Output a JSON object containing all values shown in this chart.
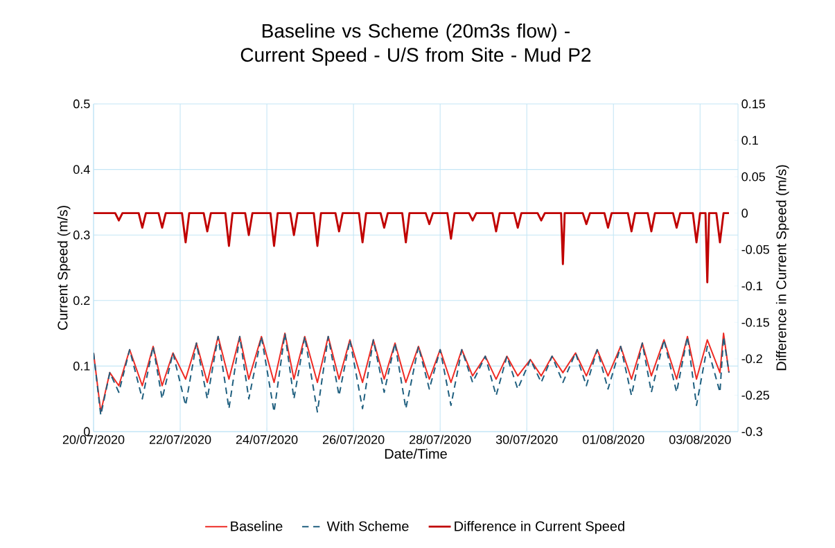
{
  "chart_data": {
    "type": "line",
    "title": "Baseline vs Scheme (20m3s flow) - Current Speed - U/S from Site - Mud P2",
    "xlabel": "Date/Time",
    "ylabel": "Current Speed (m/s)",
    "y2label": "Difference in Current Speed (m/s)",
    "xlim": [
      "2020-07-20",
      "2020-08-03T21:00"
    ],
    "xticks": [
      {
        "value": "2020-07-20",
        "label": "20/07/2020"
      },
      {
        "value": "2020-07-22",
        "label": "22/07/2020"
      },
      {
        "value": "2020-07-24",
        "label": "24/07/2020"
      },
      {
        "value": "2020-07-26",
        "label": "26/07/2020"
      },
      {
        "value": "2020-07-28",
        "label": "28/07/2020"
      },
      {
        "value": "2020-07-30",
        "label": "30/07/2020"
      },
      {
        "value": "2020-08-01",
        "label": "01/08/2020"
      },
      {
        "value": "2020-08-03",
        "label": "03/08/2020"
      }
    ],
    "ylim": [
      0,
      0.5
    ],
    "yticks": [
      0,
      0.1,
      0.2,
      0.3,
      0.4,
      0.5
    ],
    "y2lim": [
      -0.3,
      0.15
    ],
    "y2ticks": [
      -0.3,
      -0.25,
      -0.2,
      -0.15,
      -0.1,
      -0.05,
      0,
      0.05,
      0.1,
      0.15
    ],
    "grid": true,
    "legend": "bottom",
    "marker": "none",
    "series": [
      {
        "name": "Baseline",
        "color": "#ee2b24",
        "line_style": "solid",
        "x": [
          "2020-07-20T00:00",
          "2020-07-20T04:00",
          "2020-07-20T09:00",
          "2020-07-20T14:00",
          "2020-07-20T20:00",
          "2020-07-21T03:00",
          "2020-07-21T09:00",
          "2020-07-21T14:00",
          "2020-07-21T20:00",
          "2020-07-22T03:00",
          "2020-07-22T09:00",
          "2020-07-22T15:00",
          "2020-07-22T21:00",
          "2020-07-23T03:00",
          "2020-07-23T09:00",
          "2020-07-23T14:00",
          "2020-07-23T21:00",
          "2020-07-24T04:00",
          "2020-07-24T10:00",
          "2020-07-24T15:00",
          "2020-07-24T21:00",
          "2020-07-25T04:00",
          "2020-07-25T10:00",
          "2020-07-25T16:00",
          "2020-07-25T22:00",
          "2020-07-26T05:00",
          "2020-07-26T11:00",
          "2020-07-26T17:00",
          "2020-07-26T23:00",
          "2020-07-27T05:00",
          "2020-07-27T12:00",
          "2020-07-27T18:00",
          "2020-07-28T00:00",
          "2020-07-28T06:00",
          "2020-07-28T12:00",
          "2020-07-28T18:00",
          "2020-07-29T01:00",
          "2020-07-29T07:00",
          "2020-07-29T13:00",
          "2020-07-29T19:00",
          "2020-07-30T02:00",
          "2020-07-30T08:00",
          "2020-07-30T14:00",
          "2020-07-30T20:00",
          "2020-07-31T03:00",
          "2020-07-31T09:00",
          "2020-07-31T15:00",
          "2020-07-31T21:00",
          "2020-08-01T04:00",
          "2020-08-01T10:00",
          "2020-08-01T16:00",
          "2020-08-01T21:00",
          "2020-08-02T04:00",
          "2020-08-02T11:00",
          "2020-08-02T17:00",
          "2020-08-02T22:00",
          "2020-08-03T04:00",
          "2020-08-03T11:00",
          "2020-08-03T13:00",
          "2020-08-03T16:00"
        ],
        "values": [
          0.12,
          0.03,
          0.09,
          0.07,
          0.125,
          0.07,
          0.13,
          0.07,
          0.12,
          0.08,
          0.135,
          0.075,
          0.145,
          0.08,
          0.145,
          0.08,
          0.145,
          0.075,
          0.15,
          0.08,
          0.145,
          0.075,
          0.145,
          0.08,
          0.14,
          0.075,
          0.14,
          0.08,
          0.135,
          0.075,
          0.13,
          0.08,
          0.125,
          0.075,
          0.125,
          0.085,
          0.115,
          0.08,
          0.115,
          0.085,
          0.11,
          0.085,
          0.115,
          0.09,
          0.12,
          0.085,
          0.125,
          0.085,
          0.13,
          0.08,
          0.135,
          0.085,
          0.14,
          0.08,
          0.145,
          0.08,
          0.14,
          0.09,
          0.15,
          0.09
        ]
      },
      {
        "name": "With Scheme",
        "color": "#1f5f7f",
        "line_style": "dashed",
        "x": [
          "2020-07-20T00:00",
          "2020-07-20T04:00",
          "2020-07-20T09:00",
          "2020-07-20T14:00",
          "2020-07-20T20:00",
          "2020-07-21T03:00",
          "2020-07-21T09:00",
          "2020-07-21T14:00",
          "2020-07-21T20:00",
          "2020-07-22T03:00",
          "2020-07-22T09:00",
          "2020-07-22T15:00",
          "2020-07-22T21:00",
          "2020-07-23T03:00",
          "2020-07-23T09:00",
          "2020-07-23T14:00",
          "2020-07-23T21:00",
          "2020-07-24T04:00",
          "2020-07-24T10:00",
          "2020-07-24T15:00",
          "2020-07-24T21:00",
          "2020-07-25T04:00",
          "2020-07-25T10:00",
          "2020-07-25T16:00",
          "2020-07-25T22:00",
          "2020-07-26T05:00",
          "2020-07-26T11:00",
          "2020-07-26T17:00",
          "2020-07-26T23:00",
          "2020-07-27T05:00",
          "2020-07-27T12:00",
          "2020-07-27T18:00",
          "2020-07-28T00:00",
          "2020-07-28T06:00",
          "2020-07-28T12:00",
          "2020-07-28T18:00",
          "2020-07-29T01:00",
          "2020-07-29T07:00",
          "2020-07-29T13:00",
          "2020-07-29T19:00",
          "2020-07-30T02:00",
          "2020-07-30T08:00",
          "2020-07-30T14:00",
          "2020-07-30T20:00",
          "2020-07-31T03:00",
          "2020-07-31T09:00",
          "2020-07-31T15:00",
          "2020-07-31T21:00",
          "2020-08-01T04:00",
          "2020-08-01T10:00",
          "2020-08-01T16:00",
          "2020-08-01T21:00",
          "2020-08-02T04:00",
          "2020-08-02T11:00",
          "2020-08-02T17:00",
          "2020-08-02T22:00",
          "2020-08-03T04:00",
          "2020-08-03T11:00",
          "2020-08-03T13:00",
          "2020-08-03T16:00"
        ],
        "values": [
          0.12,
          0.025,
          0.09,
          0.06,
          0.125,
          0.05,
          0.13,
          0.05,
          0.12,
          0.04,
          0.135,
          0.05,
          0.145,
          0.035,
          0.145,
          0.05,
          0.145,
          0.03,
          0.15,
          0.05,
          0.145,
          0.03,
          0.145,
          0.055,
          0.14,
          0.035,
          0.14,
          0.06,
          0.135,
          0.035,
          0.13,
          0.065,
          0.125,
          0.04,
          0.125,
          0.075,
          0.115,
          0.055,
          0.115,
          0.065,
          0.11,
          0.075,
          0.115,
          0.075,
          0.12,
          0.07,
          0.125,
          0.065,
          0.13,
          0.055,
          0.135,
          0.06,
          0.14,
          0.06,
          0.145,
          0.04,
          0.13,
          0.06,
          0.145,
          0.09
        ]
      },
      {
        "name": "Difference in Current Speed",
        "color": "#c00000",
        "line_style": "solid",
        "axis": "y2",
        "x": [
          "2020-07-20T00:00",
          "2020-07-20T12:00",
          "2020-07-20T14:00",
          "2020-07-20T16:00",
          "2020-07-21T01:00",
          "2020-07-21T03:00",
          "2020-07-21T05:00",
          "2020-07-21T12:00",
          "2020-07-21T14:00",
          "2020-07-21T16:00",
          "2020-07-22T01:00",
          "2020-07-22T03:00",
          "2020-07-22T05:00",
          "2020-07-22T13:00",
          "2020-07-22T15:00",
          "2020-07-22T17:00",
          "2020-07-23T01:00",
          "2020-07-23T03:00",
          "2020-07-23T05:00",
          "2020-07-23T12:00",
          "2020-07-23T14:00",
          "2020-07-23T16:00",
          "2020-07-24T02:00",
          "2020-07-24T04:00",
          "2020-07-24T06:00",
          "2020-07-24T13:00",
          "2020-07-24T15:00",
          "2020-07-24T17:00",
          "2020-07-25T02:00",
          "2020-07-25T04:00",
          "2020-07-25T06:00",
          "2020-07-25T14:00",
          "2020-07-25T16:00",
          "2020-07-25T18:00",
          "2020-07-26T03:00",
          "2020-07-26T05:00",
          "2020-07-26T07:00",
          "2020-07-26T15:00",
          "2020-07-26T17:00",
          "2020-07-26T19:00",
          "2020-07-27T03:00",
          "2020-07-27T05:00",
          "2020-07-27T07:00",
          "2020-07-27T16:00",
          "2020-07-27T18:00",
          "2020-07-27T20:00",
          "2020-07-28T04:00",
          "2020-07-28T06:00",
          "2020-07-28T08:00",
          "2020-07-28T16:00",
          "2020-07-28T18:00",
          "2020-07-28T20:00",
          "2020-07-29T05:00",
          "2020-07-29T07:00",
          "2020-07-29T09:00",
          "2020-07-29T17:00",
          "2020-07-29T19:00",
          "2020-07-29T21:00",
          "2020-07-30T06:00",
          "2020-07-30T08:00",
          "2020-07-30T10:00",
          "2020-07-30T19:00",
          "2020-07-30T20:00",
          "2020-07-30T21:00",
          "2020-07-31T07:00",
          "2020-07-31T09:00",
          "2020-07-31T11:00",
          "2020-07-31T19:00",
          "2020-07-31T21:00",
          "2020-07-31T23:00",
          "2020-08-01T08:00",
          "2020-08-01T10:00",
          "2020-08-01T12:00",
          "2020-08-01T19:00",
          "2020-08-01T21:00",
          "2020-08-01T23:00",
          "2020-08-02T09:00",
          "2020-08-02T11:00",
          "2020-08-02T13:00",
          "2020-08-02T20:00",
          "2020-08-02T22:00",
          "2020-08-03T00:00",
          "2020-08-03T03:00",
          "2020-08-03T04:00",
          "2020-08-03T05:00",
          "2020-08-03T09:00",
          "2020-08-03T11:00",
          "2020-08-03T13:00",
          "2020-08-03T16:00"
        ],
        "values": [
          0,
          0,
          -0.01,
          0,
          0,
          -0.02,
          0,
          0,
          -0.02,
          0,
          0,
          -0.04,
          0,
          0,
          -0.025,
          0,
          0,
          -0.045,
          0,
          0,
          -0.03,
          0,
          0,
          -0.045,
          0,
          0,
          -0.03,
          0,
          0,
          -0.045,
          0,
          0,
          -0.025,
          0,
          0,
          -0.04,
          0,
          0,
          -0.02,
          0,
          0,
          -0.04,
          0,
          0,
          -0.015,
          0,
          0,
          -0.035,
          0,
          0,
          -0.01,
          0,
          0,
          -0.025,
          0,
          0,
          -0.02,
          0,
          0,
          -0.01,
          0,
          0,
          -0.07,
          0,
          0,
          -0.015,
          0,
          0,
          -0.02,
          0,
          0,
          -0.025,
          0,
          0,
          -0.025,
          0,
          0,
          -0.02,
          0,
          0,
          -0.04,
          0,
          0,
          -0.095,
          0,
          0,
          -0.04,
          0,
          0
        ]
      }
    ]
  }
}
